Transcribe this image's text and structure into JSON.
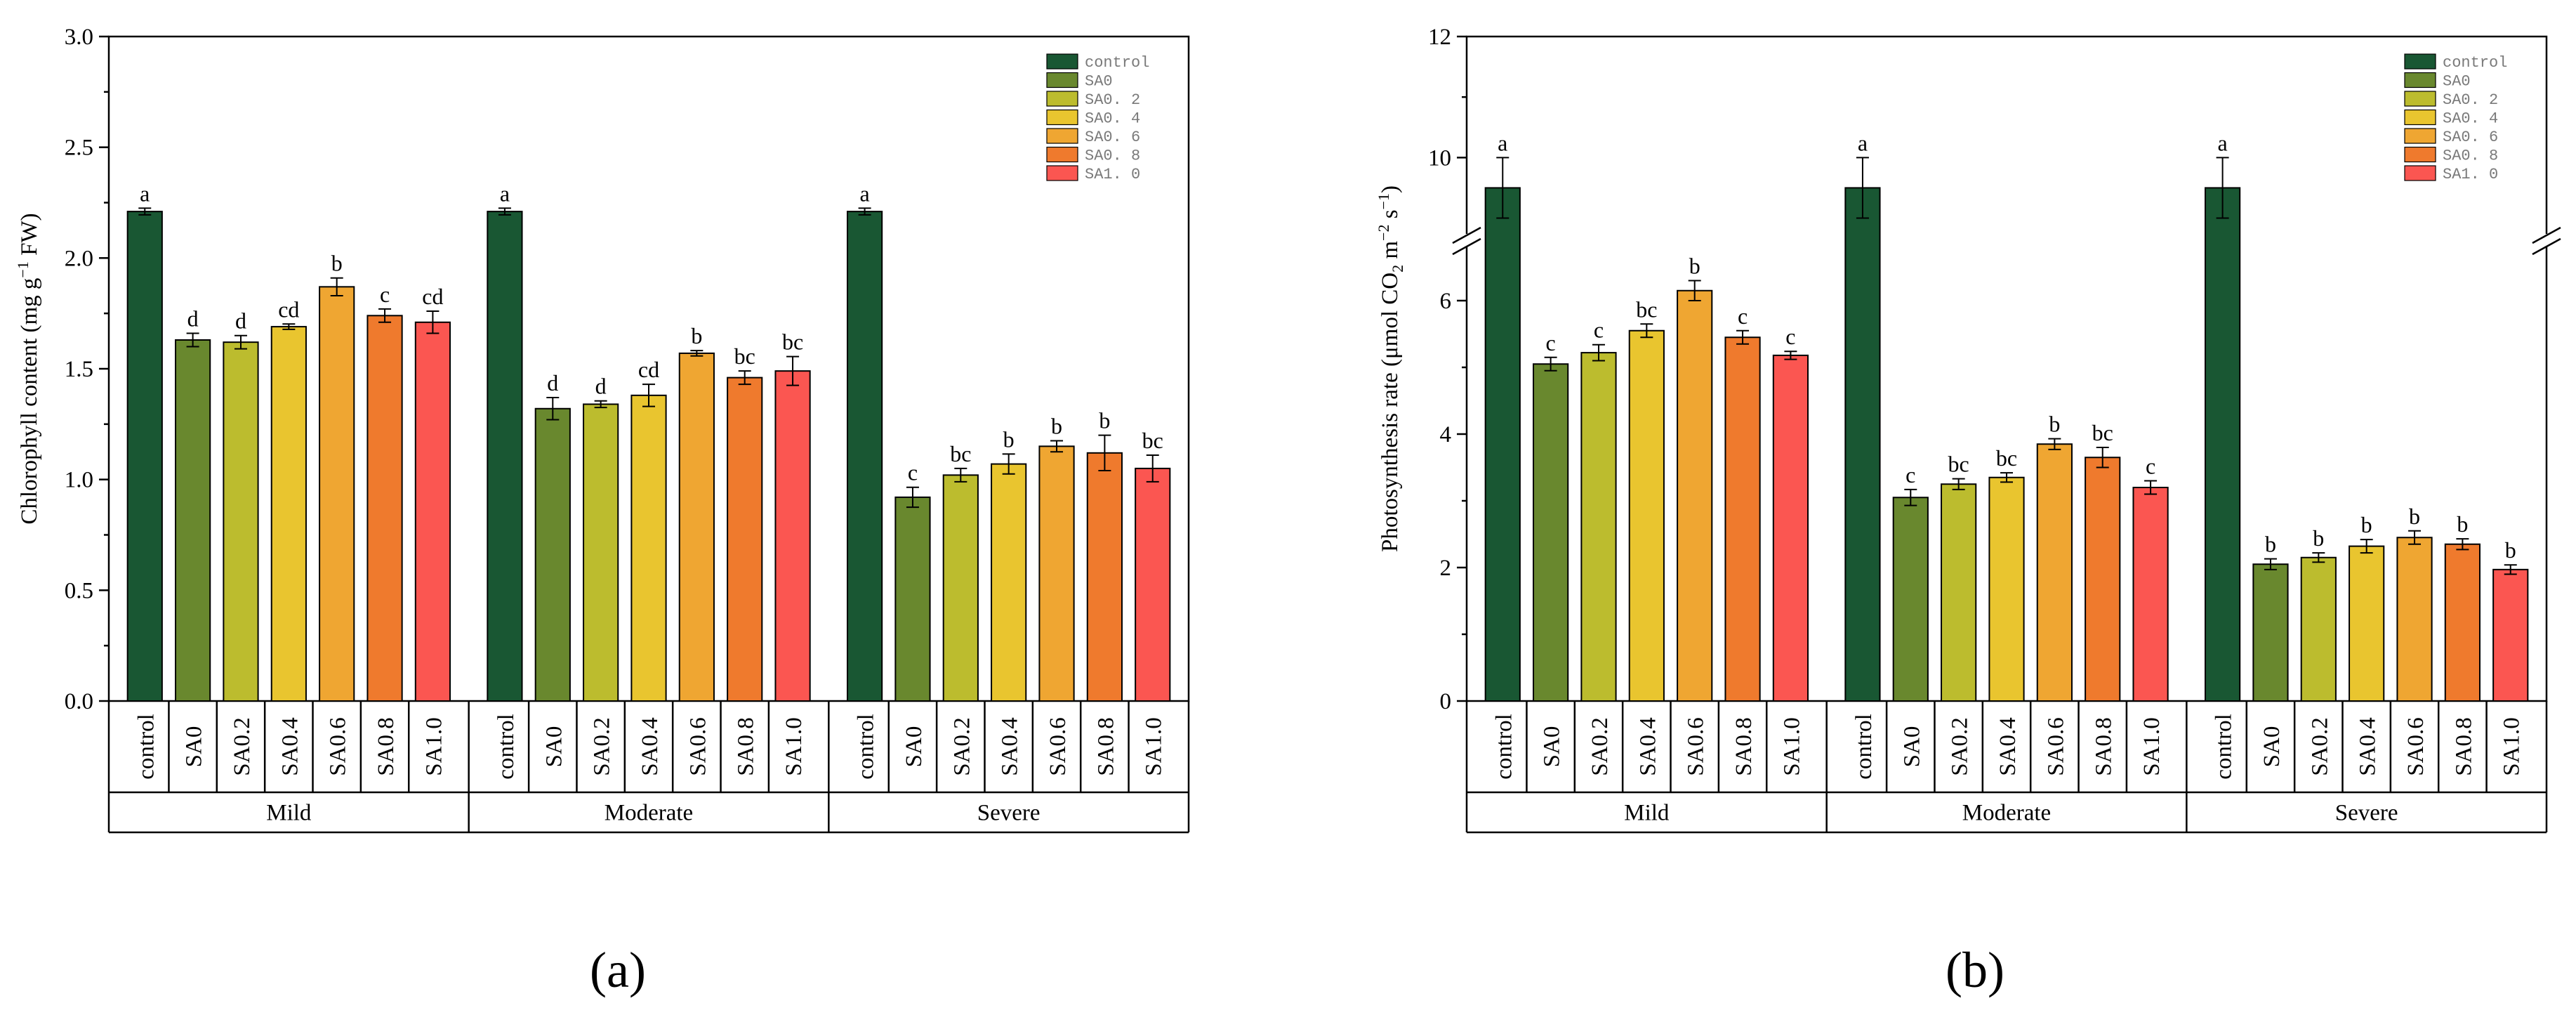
{
  "groups": [
    "Mild",
    "Moderate",
    "Severe"
  ],
  "treatments": [
    "control",
    "SA0",
    "SA0.2",
    "SA0.4",
    "SA0.6",
    "SA0.8",
    "SA1.0"
  ],
  "legend_labels": [
    "control",
    "SA0",
    "SA0. 2",
    "SA0. 4",
    "SA0. 6",
    "SA0. 8",
    "SA1. 0"
  ],
  "colors": [
    "#195733",
    "#69882e",
    "#bcbc2e",
    "#e9c52f",
    "#efa632",
    "#ef7a2d",
    "#fb5651"
  ],
  "panel_labels": {
    "a": "(a)",
    "b": "(b)"
  },
  "y_unit": {
    "a": "Chlorophyll content (mg g",
    "b": "Photosynthesis rate (μmol CO"
  },
  "chart_data": [
    {
      "type": "bar",
      "panel": "a",
      "title": "",
      "ylabel": "Chlorophyll content (mg g−1 FW)",
      "ylim": [
        0,
        3.0
      ],
      "yticks": [
        0.0,
        0.5,
        1.0,
        1.5,
        2.0,
        2.5,
        3.0
      ],
      "ytick_labels": [
        "0.0",
        "0.5",
        "1.0",
        "1.5",
        "2.0",
        "2.5",
        "3.0"
      ],
      "axis_break": null,
      "legend": "top-right",
      "series": [
        {
          "group": "Mild",
          "values": [
            2.21,
            1.63,
            1.62,
            1.69,
            1.87,
            1.74,
            1.71
          ],
          "errors": [
            0.015,
            0.03,
            0.03,
            0.012,
            0.04,
            0.03,
            0.05
          ],
          "letters": [
            "a",
            "d",
            "d",
            "cd",
            "b",
            "c",
            "cd"
          ]
        },
        {
          "group": "Moderate",
          "values": [
            2.21,
            1.32,
            1.34,
            1.38,
            1.57,
            1.46,
            1.49
          ],
          "errors": [
            0.015,
            0.05,
            0.015,
            0.05,
            0.012,
            0.03,
            0.065
          ],
          "letters": [
            "a",
            "d",
            "d",
            "cd",
            "b",
            "bc",
            "bc"
          ]
        },
        {
          "group": "Severe",
          "values": [
            2.21,
            0.92,
            1.02,
            1.07,
            1.15,
            1.12,
            1.05
          ],
          "errors": [
            0.015,
            0.045,
            0.03,
            0.045,
            0.025,
            0.08,
            0.06
          ],
          "letters": [
            "a",
            "c",
            "bc",
            "b",
            "b",
            "b",
            "bc"
          ]
        }
      ]
    },
    {
      "type": "bar",
      "panel": "b",
      "title": "",
      "ylabel": "Photosynthesis rate (μmol CO2 m−2 s−1)",
      "ylim": [
        0,
        12
      ],
      "yticks": [
        0,
        2,
        4,
        6,
        10,
        12
      ],
      "ytick_labels": [
        "0",
        "2",
        "4",
        "6",
        "10",
        "12"
      ],
      "axis_break": [
        7.0,
        8.6
      ],
      "legend": "top-right",
      "series": [
        {
          "group": "Mild",
          "values": [
            9.5,
            5.05,
            5.22,
            5.55,
            6.15,
            5.45,
            5.18
          ],
          "errors": [
            0.5,
            0.1,
            0.12,
            0.1,
            0.15,
            0.1,
            0.06
          ],
          "letters": [
            "a",
            "c",
            "c",
            "bc",
            "b",
            "c",
            "c"
          ]
        },
        {
          "group": "Moderate",
          "values": [
            9.5,
            3.05,
            3.25,
            3.35,
            3.85,
            3.65,
            3.2
          ],
          "errors": [
            0.5,
            0.12,
            0.08,
            0.07,
            0.08,
            0.15,
            0.1
          ],
          "letters": [
            "a",
            "c",
            "bc",
            "bc",
            "b",
            "bc",
            "c"
          ]
        },
        {
          "group": "Severe",
          "values": [
            9.5,
            2.05,
            2.15,
            2.32,
            2.45,
            2.35,
            1.97
          ],
          "errors": [
            0.5,
            0.08,
            0.07,
            0.1,
            0.1,
            0.08,
            0.07
          ],
          "letters": [
            "a",
            "b",
            "b",
            "b",
            "b",
            "b",
            "b"
          ]
        }
      ]
    }
  ]
}
